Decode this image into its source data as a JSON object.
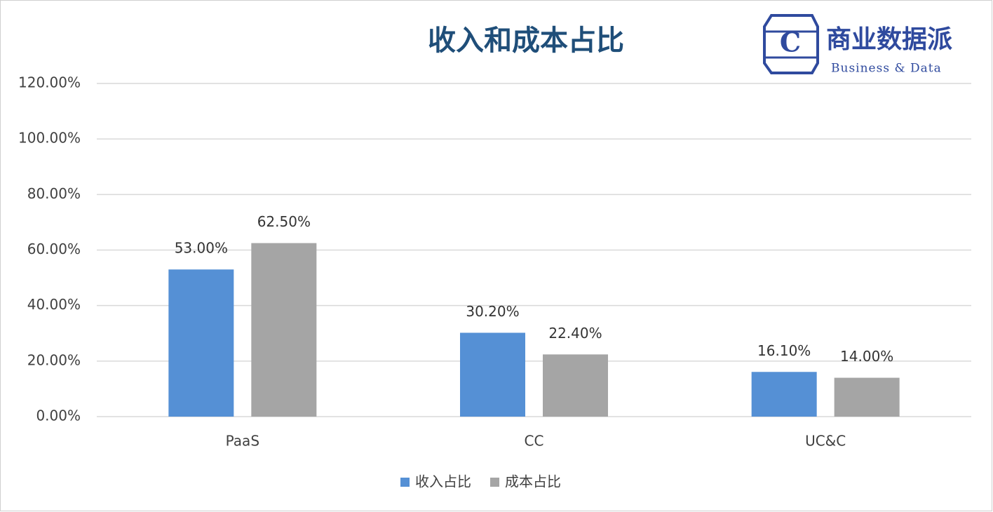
{
  "chart_data": {
    "type": "bar",
    "title": "收入和成本占比",
    "categories": [
      "PaaS",
      "CC",
      "UC&C"
    ],
    "series": [
      {
        "name": "收入占比",
        "color": "#5590d5",
        "values": [
          53,
          30.2,
          16.1
        ],
        "value_labels": [
          "53.00%",
          "30.20%",
          "16.10%"
        ]
      },
      {
        "name": "成本占比",
        "color": "#a5a5a5",
        "values": [
          62.5,
          22.4,
          14
        ],
        "value_labels": [
          "62.50%",
          "22.40%",
          "14.00%"
        ]
      }
    ],
    "ylim": [
      0,
      120
    ],
    "yticks": [
      {
        "value": 0,
        "label": "0.00%"
      },
      {
        "value": 20,
        "label": "20.00%"
      },
      {
        "value": 40,
        "label": "40.00%"
      },
      {
        "value": 60,
        "label": "60.00%"
      },
      {
        "value": 80,
        "label": "80.00%"
      },
      {
        "value": 100,
        "label": "100.00%"
      },
      {
        "value": 120,
        "label": "120.00%"
      }
    ],
    "grid": true,
    "legend": "bottom"
  },
  "logo": {
    "letter": "C",
    "name": "商业数据派",
    "tagline": "Business & Data"
  }
}
